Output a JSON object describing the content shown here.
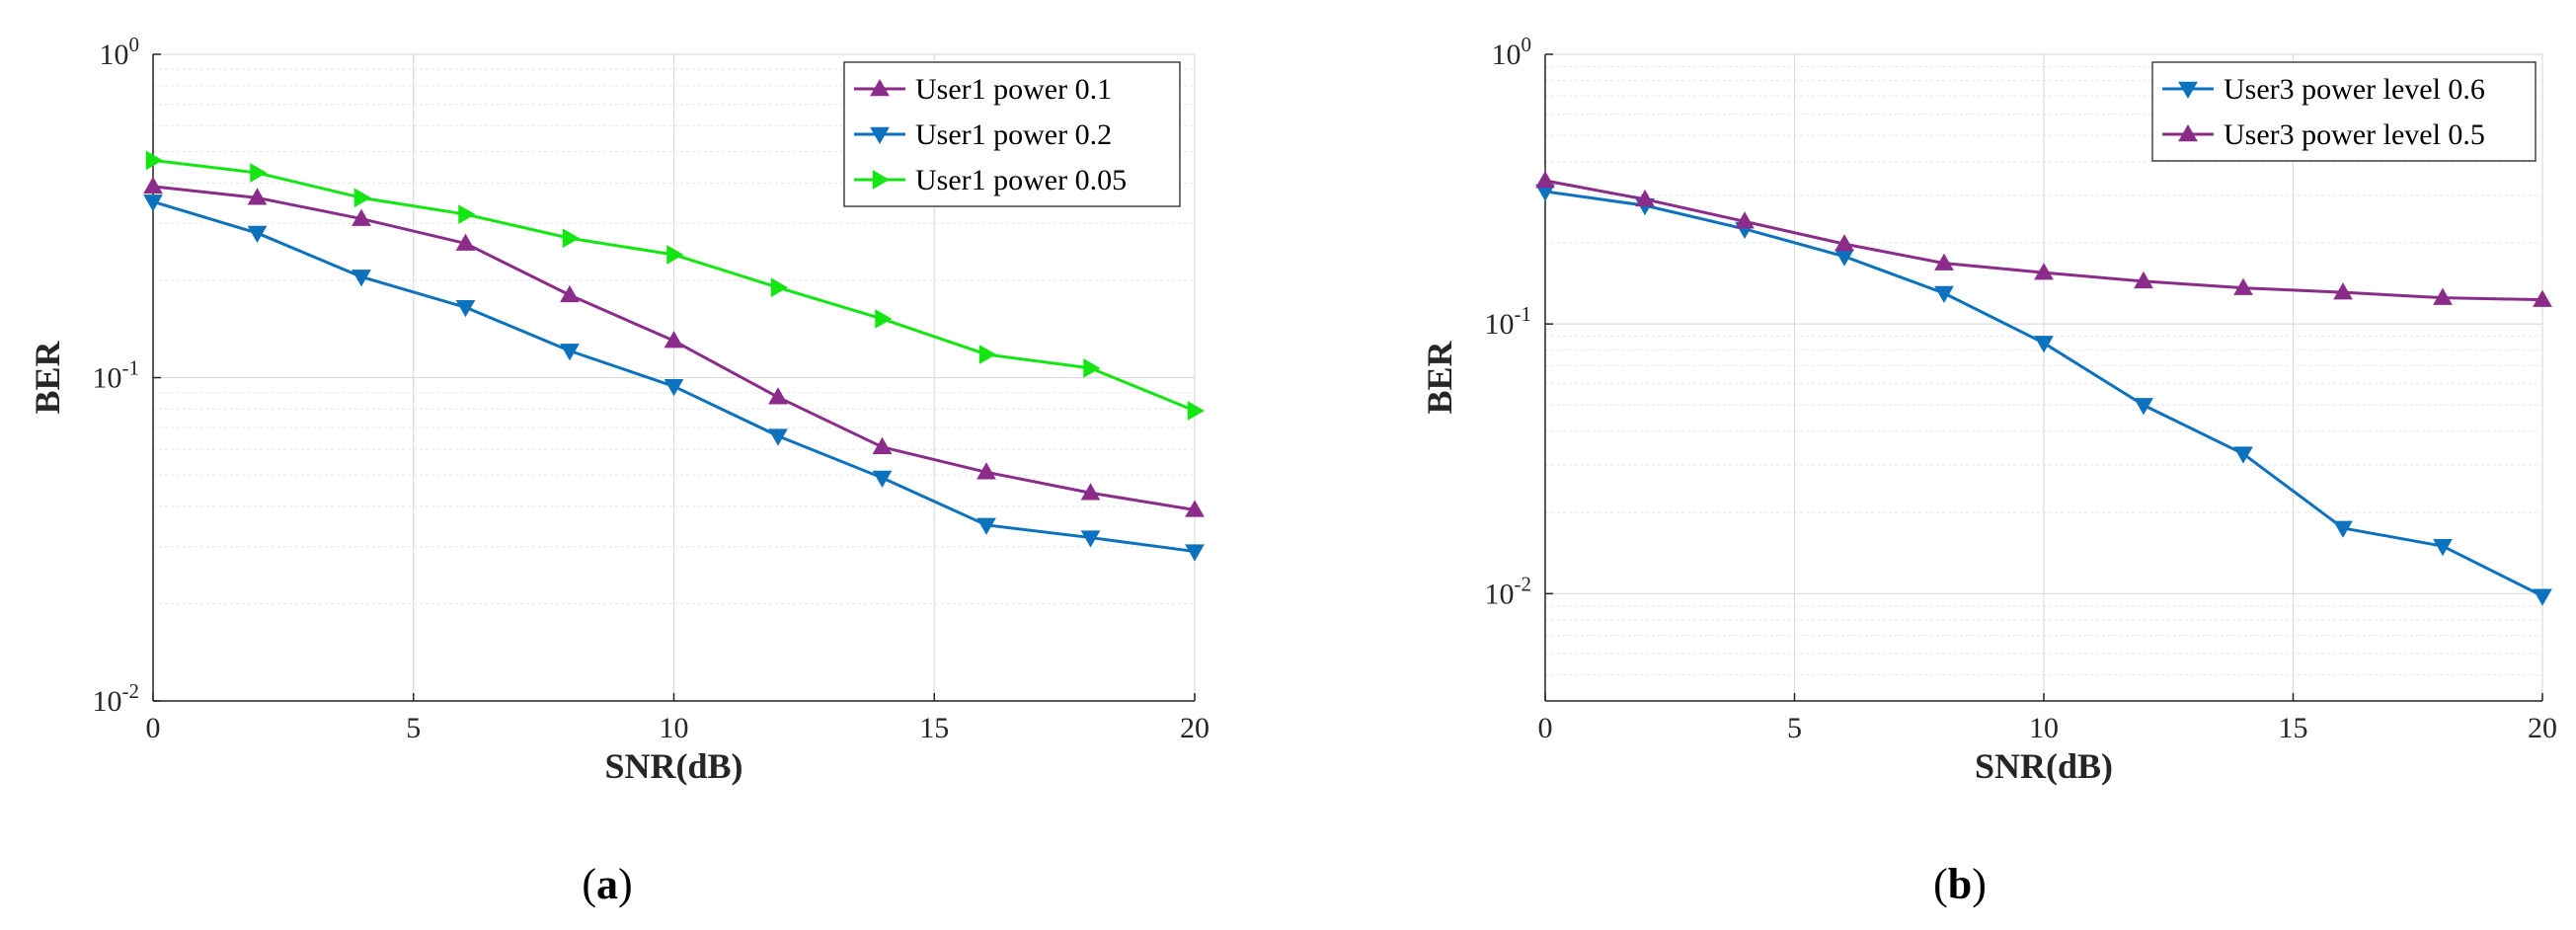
{
  "chart_data": [
    {
      "type": "line",
      "panel_label": "a",
      "title": "",
      "xlabel": "SNR(dB)",
      "ylabel": "BER",
      "yscale": "log",
      "xlim": [
        0,
        20
      ],
      "ylim": [
        0.01,
        1
      ],
      "xticks": [
        0,
        5,
        10,
        15,
        20
      ],
      "yticks": [
        0.01,
        0.1,
        1
      ],
      "yticklabels": [
        {
          "base": "10",
          "exp": "-2"
        },
        {
          "base": "10",
          "exp": "-1"
        },
        {
          "base": "10",
          "exp": "0"
        }
      ],
      "grid": true,
      "legend_position": "top-right",
      "x": [
        0,
        2,
        4,
        6,
        8,
        10,
        12,
        14,
        16,
        18,
        20
      ],
      "series": [
        {
          "name": "User1 power 0.1",
          "color": "#8b2c8b",
          "marker": "triangle-up",
          "values": [
            0.39,
            0.36,
            0.31,
            0.26,
            0.18,
            0.13,
            0.087,
            0.061,
            0.051,
            0.044,
            0.039
          ]
        },
        {
          "name": "User1 power 0.2",
          "color": "#0c72bd",
          "marker": "triangle-down",
          "values": [
            0.35,
            0.28,
            0.205,
            0.165,
            0.121,
            0.094,
            0.066,
            0.049,
            0.035,
            0.032,
            0.029
          ]
        },
        {
          "name": "User1 power 0.05",
          "color": "#14e614",
          "marker": "triangle-right",
          "values": [
            0.47,
            0.43,
            0.36,
            0.32,
            0.27,
            0.24,
            0.19,
            0.152,
            0.118,
            0.107,
            0.079
          ]
        }
      ]
    },
    {
      "type": "line",
      "panel_label": "b",
      "title": "",
      "xlabel": "SNR(dB)",
      "ylabel": "BER",
      "yscale": "log",
      "xlim": [
        0,
        20
      ],
      "ylim": [
        0.004,
        1
      ],
      "xticks": [
        0,
        5,
        10,
        15,
        20
      ],
      "yticks": [
        0.01,
        0.1,
        1
      ],
      "yticklabels": [
        {
          "base": "10",
          "exp": "-2"
        },
        {
          "base": "10",
          "exp": "-1"
        },
        {
          "base": "10",
          "exp": "0"
        }
      ],
      "grid": true,
      "legend_position": "top-right",
      "x": [
        0,
        2,
        4,
        6,
        8,
        10,
        12,
        14,
        16,
        18,
        20
      ],
      "series": [
        {
          "name": "User3 power level 0.6",
          "color": "#0c72bd",
          "marker": "triangle-down",
          "values": [
            0.31,
            0.275,
            0.225,
            0.178,
            0.13,
            0.085,
            0.05,
            0.033,
            0.0175,
            0.015,
            0.0098
          ]
        },
        {
          "name": "User3 power level 0.5",
          "color": "#8b2c8b",
          "marker": "triangle-up",
          "values": [
            0.34,
            0.29,
            0.24,
            0.198,
            0.168,
            0.155,
            0.144,
            0.136,
            0.131,
            0.125,
            0.123
          ]
        }
      ]
    }
  ]
}
